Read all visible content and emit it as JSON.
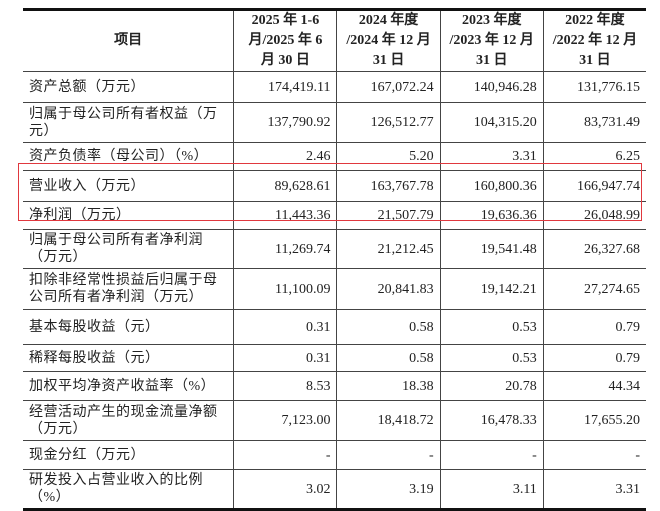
{
  "table": {
    "headers": [
      "项目",
      "2025 年 1-6 月/2025 年 6 月 30 日",
      "2024 年度 /2024 年 12 月 31 日",
      "2023 年度 /2023 年 12 月 31 日",
      "2022 年度 /2022 年 12 月 31 日"
    ],
    "rows": [
      {
        "label": "资产总额（万元）",
        "values": [
          "174,419.11",
          "167,072.24",
          "140,946.28",
          "131,776.15"
        ]
      },
      {
        "label": "归属于母公司所有者权益（万元）",
        "values": [
          "137,790.92",
          "126,512.77",
          "104,315.20",
          "83,731.49"
        ]
      },
      {
        "label": "资产负债率（母公司）（%）",
        "values": [
          "2.46",
          "5.20",
          "3.31",
          "6.25"
        ]
      },
      {
        "label": "营业收入（万元）",
        "values": [
          "89,628.61",
          "163,767.78",
          "160,800.36",
          "166,947.74"
        ]
      },
      {
        "label": "净利润（万元）",
        "values": [
          "11,443.36",
          "21,507.79",
          "19,636.36",
          "26,048.99"
        ]
      },
      {
        "label": "归属于母公司所有者净利润（万元）",
        "values": [
          "11,269.74",
          "21,212.45",
          "19,541.48",
          "26,327.68"
        ]
      },
      {
        "label": "扣除非经常性损益后归属于母公司所有者净利润（万元）",
        "values": [
          "11,100.09",
          "20,841.83",
          "19,142.21",
          "27,274.65"
        ]
      },
      {
        "label": "基本每股收益（元）",
        "values": [
          "0.31",
          "0.58",
          "0.53",
          "0.79"
        ]
      },
      {
        "label": "稀释每股收益（元）",
        "values": [
          "0.31",
          "0.58",
          "0.53",
          "0.79"
        ]
      },
      {
        "label": "加权平均净资产收益率（%）",
        "values": [
          "8.53",
          "18.38",
          "20.78",
          "44.34"
        ]
      },
      {
        "label": "经营活动产生的现金流量净额（万元）",
        "values": [
          "7,123.00",
          "18,418.72",
          "16,478.33",
          "17,655.20"
        ]
      },
      {
        "label": "现金分红（万元）",
        "values": [
          "-",
          "-",
          "-",
          "-"
        ]
      },
      {
        "label": "研发投入占营业收入的比例（%）",
        "values": [
          "3.02",
          "3.19",
          "3.11",
          "3.31"
        ]
      }
    ],
    "highlight_color": "#e0383e"
  }
}
